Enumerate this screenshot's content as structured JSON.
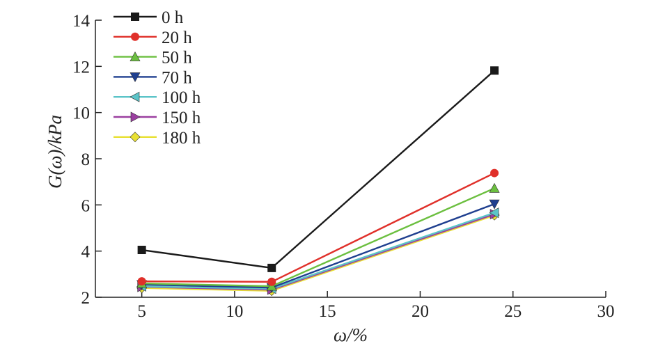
{
  "chart_data": {
    "type": "line",
    "title": "",
    "xlabel": "ω/%",
    "ylabel": "G(ω)/kPa",
    "xlim": [
      2.5,
      30
    ],
    "ylim": [
      2,
      14
    ],
    "xticks": [
      5,
      10,
      15,
      20,
      25,
      30
    ],
    "yticks": [
      2,
      4,
      6,
      8,
      10,
      12,
      14
    ],
    "grid": false,
    "legend": "top-left",
    "x": [
      5,
      12,
      24
    ],
    "series": [
      {
        "name": "0 h",
        "values": [
          4.05,
          3.27,
          11.82
        ],
        "color": "#1a1a1a",
        "marker": "square"
      },
      {
        "name": "20 h",
        "values": [
          2.69,
          2.67,
          7.38
        ],
        "color": "#e0302a",
        "marker": "circle"
      },
      {
        "name": "50 h",
        "values": [
          2.6,
          2.48,
          6.72
        ],
        "color": "#6bbf3f",
        "marker": "triangle-up"
      },
      {
        "name": "70 h",
        "values": [
          2.55,
          2.42,
          6.04
        ],
        "color": "#1f3f8f",
        "marker": "triangle-down"
      },
      {
        "name": "100 h",
        "values": [
          2.47,
          2.37,
          5.66
        ],
        "color": "#5bc4c8",
        "marker": "triangle-left"
      },
      {
        "name": "150 h",
        "values": [
          2.45,
          2.33,
          5.6
        ],
        "color": "#9b3fa0",
        "marker": "triangle-right"
      },
      {
        "name": "180 h",
        "values": [
          2.4,
          2.28,
          5.55
        ],
        "color": "#e8e033",
        "marker": "diamond"
      }
    ]
  }
}
